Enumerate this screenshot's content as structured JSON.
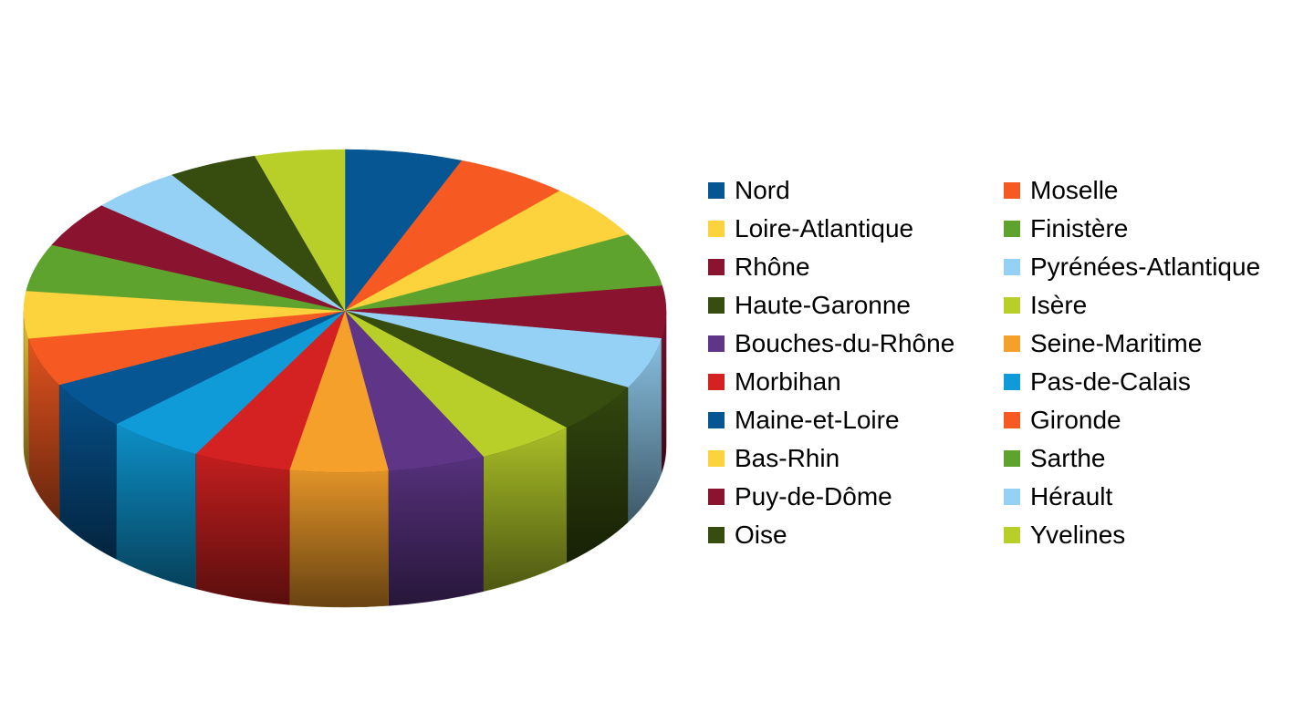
{
  "chart_data": {
    "type": "pie",
    "variant": "3d",
    "title": "",
    "legend_position": "right",
    "legend_columns": 2,
    "series": [
      {
        "name": "Nord",
        "value": 5.9,
        "color": "#075694"
      },
      {
        "name": "Moselle",
        "value": 5.7,
        "color": "#F65A22"
      },
      {
        "name": "Loire-Atlantique",
        "value": 5.5,
        "color": "#FCD23D"
      },
      {
        "name": "Finistère",
        "value": 5.3,
        "color": "#5EA32E"
      },
      {
        "name": "Rhône",
        "value": 5.2,
        "color": "#8A1330"
      },
      {
        "name": "Pyrénées-Atlantique",
        "value": 5.1,
        "color": "#94D1F5"
      },
      {
        "name": "Haute-Garonne",
        "value": 5.0,
        "color": "#364D0F"
      },
      {
        "name": "Isère",
        "value": 5.0,
        "color": "#B8CF2A"
      },
      {
        "name": "Bouches-du-Rhône",
        "value": 4.9,
        "color": "#5E3587"
      },
      {
        "name": "Seine-Maritime",
        "value": 4.9,
        "color": "#F6A02C"
      },
      {
        "name": "Morbihan",
        "value": 4.9,
        "color": "#D42121"
      },
      {
        "name": "Pas-de-Calais",
        "value": 4.9,
        "color": "#0E9BD8"
      },
      {
        "name": "Maine-et-Loire",
        "value": 4.8,
        "color": "#075694"
      },
      {
        "name": "Gironde",
        "value": 4.8,
        "color": "#F65A22"
      },
      {
        "name": "Bas-Rhin",
        "value": 4.7,
        "color": "#FCD23D"
      },
      {
        "name": "Sarthe",
        "value": 4.7,
        "color": "#5EA32E"
      },
      {
        "name": "Puy-de-Dôme",
        "value": 4.6,
        "color": "#8A1330"
      },
      {
        "name": "Hérault",
        "value": 4.6,
        "color": "#94D1F5"
      },
      {
        "name": "Oise",
        "value": 4.5,
        "color": "#364D0F"
      },
      {
        "name": "Yvelines",
        "value": 4.5,
        "color": "#B8CF2A"
      }
    ]
  }
}
